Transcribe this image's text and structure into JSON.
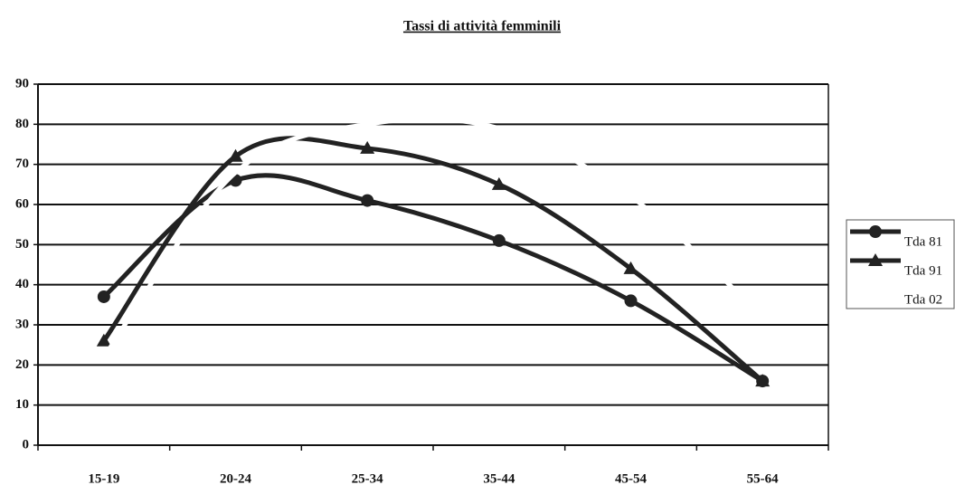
{
  "chart_data": {
    "type": "line",
    "title": "Tassi di attività femminili",
    "categories": [
      "15-19",
      "20-24",
      "25-34",
      "35-44",
      "45-54",
      "55-64"
    ],
    "series": [
      {
        "name": "Tda 81",
        "color": "#222222",
        "marker": "circle",
        "values": [
          37,
          66,
          61,
          51,
          36,
          16
        ]
      },
      {
        "name": "Tda 91",
        "color": "#222222",
        "marker": "triangle",
        "values": [
          26,
          72,
          74,
          65,
          44,
          16
        ]
      },
      {
        "name": "Tda 02",
        "color": "#ffffff",
        "marker": "none",
        "values": [
          22,
          68,
          80,
          79,
          62,
          32
        ]
      }
    ],
    "smooth": true,
    "ylim": [
      0,
      90
    ],
    "yticks": [
      0,
      10,
      20,
      30,
      40,
      50,
      60,
      70,
      80,
      90
    ],
    "grid": true,
    "legend": "right"
  }
}
